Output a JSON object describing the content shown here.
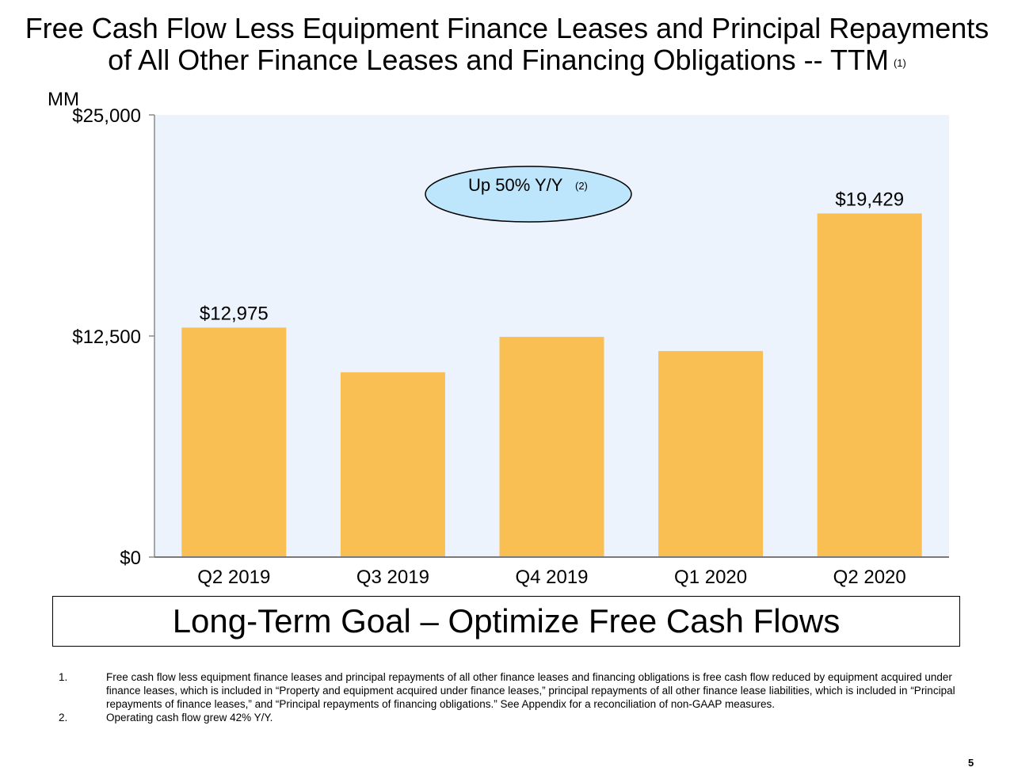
{
  "title": {
    "line1": "Free Cash Flow Less Equipment Finance Leases and Principal Repayments",
    "line2": "of All Other Finance Leases and Financing Obligations -- TTM",
    "footnote_ref": "(1)"
  },
  "chart_data": {
    "type": "bar",
    "unit_label": "MM",
    "categories": [
      "Q2 2019",
      "Q3 2019",
      "Q4 2019",
      "Q1 2020",
      "Q2 2020"
    ],
    "values": [
      12975,
      10450,
      12450,
      11650,
      19429
    ],
    "data_labels": [
      "$12,975",
      "",
      "",
      "",
      "$19,429"
    ],
    "ylim": [
      0,
      25000
    ],
    "yticks": [
      0,
      12500,
      25000
    ],
    "ytick_labels": [
      "$0",
      "$12,500",
      "$25,000"
    ],
    "bar_color": "#f9bf52",
    "plot_bg": "#edf3fd",
    "annotation": {
      "text": "Up 50% Y/Y",
      "ref": "(2)",
      "fill": "#bde5fb"
    }
  },
  "goal_box": "Long-Term Goal – Optimize Free Cash Flows",
  "footnotes": [
    {
      "num": "1.",
      "text": "Free cash flow less equipment finance leases and principal repayments of all other finance leases and financing obligations is free cash flow reduced by equipment acquired under finance leases, which is included in “Property and equipment acquired under finance leases,” principal repayments of all other finance lease liabilities, which is included in “Principal repayments of finance leases,” and “Principal repayments of financing obligations.” See Appendix for a reconciliation of non-GAAP measures."
    },
    {
      "num": "2.",
      "text": "Operating cash flow grew 42% Y/Y."
    }
  ],
  "page_number": "5"
}
